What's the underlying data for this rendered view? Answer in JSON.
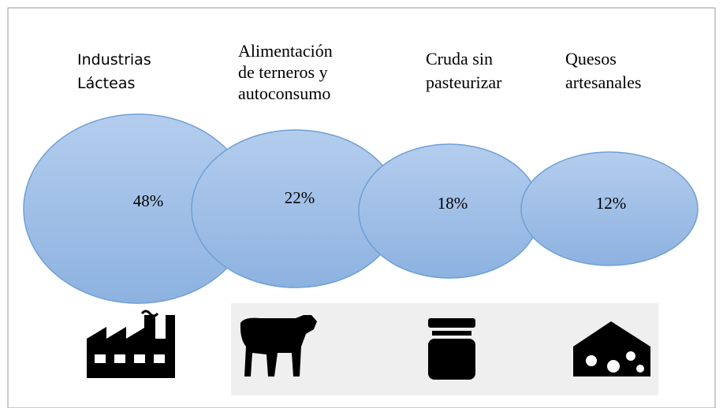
{
  "items": [
    {
      "label": [
        "Industrias",
        "Lácteas"
      ],
      "value": "48%"
    },
    {
      "label": [
        "Alimentación",
        "de terneros  y",
        "autoconsumo"
      ],
      "value": "22%"
    },
    {
      "label": [
        "Cruda sin",
        "pasteurizar"
      ],
      "value": "18%"
    },
    {
      "label": [
        "Quesos",
        "artesanales"
      ],
      "value": "12%"
    }
  ]
}
